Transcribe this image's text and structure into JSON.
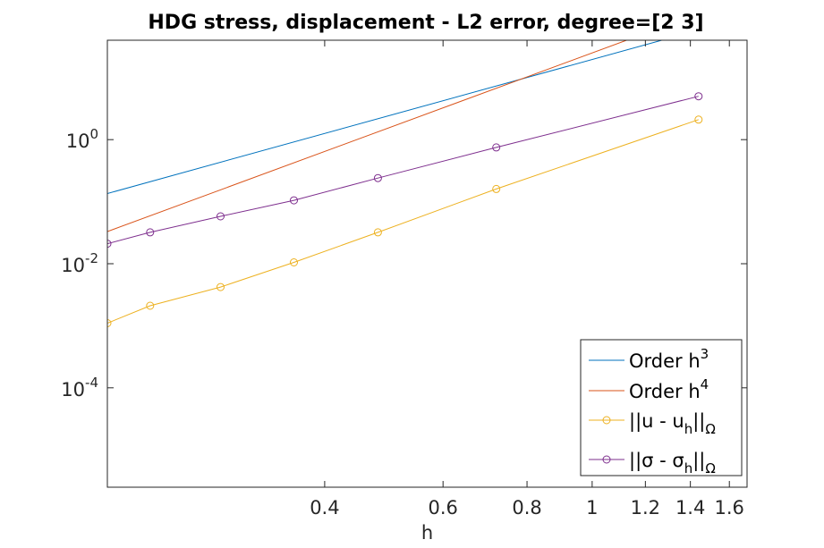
{
  "chart_data": {
    "type": "line",
    "title": "HDG stress, displacement - L2 error, degree=[2  3]",
    "xlabel": "h",
    "ylabel": "",
    "xscale": "log",
    "yscale": "log",
    "xlim": [
      0.19,
      1.7
    ],
    "ylim": [
      2.5e-06,
      40
    ],
    "xticks": [
      0.4,
      0.6,
      0.8,
      1,
      1.2,
      1.4,
      1.6
    ],
    "xtick_labels": [
      "0.4",
      "0.6",
      "0.8",
      "1",
      "1.2",
      "1.4",
      "1.6"
    ],
    "yticks": [
      0.0001,
      0.01,
      1
    ],
    "ytick_labels": [
      {
        "base": "10",
        "exp": "-4"
      },
      {
        "base": "10",
        "exp": "-2"
      },
      {
        "base": "10",
        "exp": "0"
      }
    ],
    "grid": false,
    "legend_position": "bottom-right",
    "series": [
      {
        "name": "Order h^3",
        "legend": {
          "main": "Order h",
          "sup": "3"
        },
        "color": "#0072BD",
        "marker": "none",
        "x": [
          0.19,
          1.6
        ],
        "y": [
          0.135,
          80
        ]
      },
      {
        "name": "Order h^4",
        "legend": {
          "main": "Order h",
          "sup": "4"
        },
        "color": "#D95319",
        "marker": "none",
        "x": [
          0.19,
          1.45
        ],
        "y": [
          0.033,
          110
        ]
      },
      {
        "name": "||u - u_h||_Ω",
        "legend": {
          "pre": "||u - u",
          "sub": "h",
          "mid": "||",
          "sub2": "Ω"
        },
        "color": "#EDB120",
        "marker": "circle",
        "x": [
          0.19,
          0.22,
          0.28,
          0.36,
          0.48,
          0.72,
          1.44
        ],
        "y": [
          0.0011,
          0.0021,
          0.0042,
          0.0105,
          0.032,
          0.16,
          2.1
        ]
      },
      {
        "name": "||σ - σ_h||_Ω",
        "legend": {
          "pre": "||σ - σ",
          "sub": "h",
          "mid": "||",
          "sub2": "Ω"
        },
        "color": "#7E2F8E",
        "marker": "circle",
        "x": [
          0.19,
          0.22,
          0.28,
          0.36,
          0.48,
          0.72,
          1.44
        ],
        "y": [
          0.021,
          0.032,
          0.058,
          0.105,
          0.24,
          0.75,
          5.0
        ]
      }
    ]
  }
}
